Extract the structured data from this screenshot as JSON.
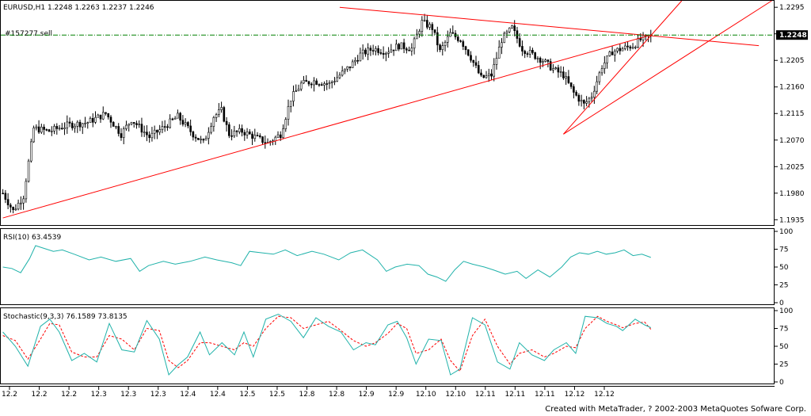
{
  "footer": "Created with MetaTrader, ? 2002-2003 MetaQuotes Sofware Corp.",
  "colors": {
    "background": "#ffffff",
    "frame": "#000000",
    "candle": "#000000",
    "trendline": "#ff0000",
    "order_line": "#008000",
    "rsi": "#20b2aa",
    "stoch_main": "#20b2aa",
    "stoch_signal": "#ff0000",
    "price_tag_bg": "#000000",
    "price_tag_fg": "#ffffff"
  },
  "chart_data": [
    {
      "type": "candlestick",
      "symbol_header": "EURUSD,H1  1.2248 1.2263 1.2237 1.2246",
      "ohlc_last": {
        "open": 1.2248,
        "high": 1.2263,
        "low": 1.2237,
        "close": 1.2246
      },
      "order_label": "#157277 sell",
      "order_price": 1.2248,
      "current_price_label": "1.2248",
      "y_ticks": [
        "1.2295",
        "1.2250",
        "1.2205",
        "1.2160",
        "1.2115",
        "1.2070",
        "1.2025",
        "1.1980",
        "1.1935"
      ],
      "ylim": [
        1.1926,
        1.2306
      ],
      "grid": false,
      "x_ticks": [
        "12.2",
        "12.2",
        "12.2",
        "12.3",
        "12.3",
        "12.3",
        "12.4",
        "12.4",
        "12.5",
        "12.5",
        "12.8",
        "12.8",
        "12.9",
        "12.9",
        "12.10",
        "12.10",
        "12.11",
        "12.11",
        "12.11",
        "12.12",
        "12.12"
      ],
      "close_path": [
        [
          0,
          1.198
        ],
        [
          4,
          1.195
        ],
        [
          8,
          1.1975
        ],
        [
          12,
          1.209
        ],
        [
          18,
          1.2085
        ],
        [
          25,
          1.2095
        ],
        [
          33,
          1.21
        ],
        [
          40,
          1.2115
        ],
        [
          46,
          1.208
        ],
        [
          50,
          1.2105
        ],
        [
          57,
          1.2075
        ],
        [
          62,
          1.209
        ],
        [
          68,
          1.211
        ],
        [
          74,
          1.208
        ],
        [
          78,
          1.2065
        ],
        [
          82,
          1.211
        ],
        [
          85,
          1.212
        ],
        [
          88,
          1.208
        ],
        [
          93,
          1.2085
        ],
        [
          98,
          1.2075
        ],
        [
          103,
          1.2065
        ],
        [
          108,
          1.208
        ],
        [
          112,
          1.214
        ],
        [
          116,
          1.2165
        ],
        [
          121,
          1.217
        ],
        [
          127,
          1.2165
        ],
        [
          131,
          1.218
        ],
        [
          135,
          1.2195
        ],
        [
          139,
          1.2215
        ],
        [
          144,
          1.2225
        ],
        [
          149,
          1.222
        ],
        [
          154,
          1.223
        ],
        [
          159,
          1.2225
        ],
        [
          163,
          1.227
        ],
        [
          167,
          1.226
        ],
        [
          170,
          1.222
        ],
        [
          174,
          1.225
        ],
        [
          178,
          1.224
        ],
        [
          182,
          1.221
        ],
        [
          186,
          1.2175
        ],
        [
          190,
          1.218
        ],
        [
          194,
          1.224
        ],
        [
          198,
          1.226
        ],
        [
          202,
          1.2225
        ],
        [
          206,
          1.2215
        ],
        [
          210,
          1.2205
        ],
        [
          214,
          1.219
        ],
        [
          218,
          1.218
        ],
        [
          222,
          1.215
        ],
        [
          226,
          1.213
        ],
        [
          229,
          1.2145
        ],
        [
          233,
          1.2195
        ],
        [
          237,
          1.222
        ],
        [
          241,
          1.2225
        ],
        [
          245,
          1.223
        ],
        [
          248,
          1.224
        ],
        [
          252,
          1.2246
        ]
      ],
      "trendlines": [
        {
          "from": [
            0,
            1.1938
          ],
          "to": [
            252,
            1.2248
          ]
        },
        {
          "from": [
            131,
            1.2295
          ],
          "to": [
            294,
            1.223
          ]
        },
        {
          "from": [
            218,
            1.208
          ],
          "to": [
            264,
            1.2306
          ]
        },
        {
          "from": [
            218,
            1.208
          ],
          "to": [
            299,
            1.2306
          ]
        }
      ]
    },
    {
      "type": "line",
      "label": "RSI(10)  63.4539",
      "y_ticks": [
        "100",
        "75",
        "50",
        "25",
        "0"
      ],
      "ylim": [
        0,
        100
      ],
      "values": [
        [
          0,
          50
        ],
        [
          3,
          48
        ],
        [
          6,
          42
        ],
        [
          9,
          62
        ],
        [
          11,
          80
        ],
        [
          14,
          76
        ],
        [
          17,
          72
        ],
        [
          20,
          74
        ],
        [
          24,
          68
        ],
        [
          29,
          60
        ],
        [
          33,
          64
        ],
        [
          38,
          58
        ],
        [
          43,
          62
        ],
        [
          46,
          44
        ],
        [
          49,
          52
        ],
        [
          54,
          58
        ],
        [
          58,
          54
        ],
        [
          63,
          58
        ],
        [
          68,
          64
        ],
        [
          72,
          60
        ],
        [
          77,
          56
        ],
        [
          80,
          52
        ],
        [
          83,
          72
        ],
        [
          87,
          70
        ],
        [
          91,
          68
        ],
        [
          95,
          74
        ],
        [
          99,
          66
        ],
        [
          104,
          72
        ],
        [
          108,
          68
        ],
        [
          113,
          60
        ],
        [
          117,
          70
        ],
        [
          121,
          74
        ],
        [
          126,
          60
        ],
        [
          129,
          44
        ],
        [
          132,
          50
        ],
        [
          136,
          54
        ],
        [
          140,
          52
        ],
        [
          143,
          40
        ],
        [
          146,
          36
        ],
        [
          149,
          30
        ],
        [
          152,
          46
        ],
        [
          155,
          58
        ],
        [
          158,
          54
        ],
        [
          162,
          50
        ],
        [
          165,
          46
        ],
        [
          169,
          40
        ],
        [
          173,
          44
        ],
        [
          176,
          34
        ],
        [
          180,
          46
        ],
        [
          184,
          36
        ],
        [
          188,
          50
        ],
        [
          191,
          64
        ],
        [
          194,
          70
        ],
        [
          197,
          68
        ],
        [
          200,
          72
        ],
        [
          203,
          68
        ],
        [
          206,
          70
        ],
        [
          209,
          74
        ],
        [
          212,
          66
        ],
        [
          215,
          68
        ],
        [
          218,
          63.45
        ]
      ]
    },
    {
      "type": "line",
      "label": "Stochastic(9,3,3)  76.1589  73.8135",
      "y_ticks": [
        "100",
        "75",
        "50",
        "25",
        "0"
      ],
      "ylim": [
        0,
        100
      ],
      "series": [
        {
          "values": [
            [
              0,
              70
            ],
            [
              4,
              50
            ],
            [
              8,
              22
            ],
            [
              12,
              78
            ],
            [
              15,
              88
            ],
            [
              18,
              70
            ],
            [
              22,
              30
            ],
            [
              26,
              40
            ],
            [
              30,
              28
            ],
            [
              34,
              82
            ],
            [
              38,
              45
            ],
            [
              42,
              42
            ],
            [
              46,
              86
            ],
            [
              50,
              60
            ],
            [
              53,
              10
            ],
            [
              56,
              24
            ],
            [
              59,
              35
            ],
            [
              63,
              70
            ],
            [
              66,
              38
            ],
            [
              70,
              55
            ],
            [
              74,
              38
            ],
            [
              77,
              70
            ],
            [
              80,
              35
            ],
            [
              84,
              88
            ],
            [
              88,
              95
            ],
            [
              92,
              85
            ],
            [
              96,
              62
            ],
            [
              100,
              90
            ],
            [
              104,
              78
            ],
            [
              108,
              70
            ],
            [
              112,
              45
            ],
            [
              116,
              55
            ],
            [
              119,
              52
            ],
            [
              123,
              80
            ],
            [
              126,
              85
            ],
            [
              129,
              62
            ],
            [
              132,
              25
            ],
            [
              136,
              60
            ],
            [
              140,
              58
            ],
            [
              143,
              10
            ],
            [
              146,
              18
            ],
            [
              150,
              90
            ],
            [
              154,
              80
            ],
            [
              158,
              28
            ],
            [
              162,
              18
            ],
            [
              165,
              55
            ],
            [
              169,
              38
            ],
            [
              173,
              30
            ],
            [
              176,
              45
            ],
            [
              180,
              55
            ],
            [
              183,
              40
            ],
            [
              186,
              92
            ],
            [
              190,
              90
            ],
            [
              193,
              82
            ],
            [
              196,
              78
            ],
            [
              198,
              72
            ],
            [
              202,
              88
            ],
            [
              205,
              80
            ],
            [
              207,
              76.16
            ]
          ]
        },
        {
          "values": [
            [
              0,
              65
            ],
            [
              4,
              58
            ],
            [
              8,
              32
            ],
            [
              12,
              60
            ],
            [
              15,
              82
            ],
            [
              18,
              80
            ],
            [
              22,
              42
            ],
            [
              26,
              35
            ],
            [
              30,
              35
            ],
            [
              34,
              65
            ],
            [
              38,
              60
            ],
            [
              42,
              45
            ],
            [
              46,
              75
            ],
            [
              50,
              72
            ],
            [
              53,
              30
            ],
            [
              56,
              20
            ],
            [
              59,
              30
            ],
            [
              63,
              55
            ],
            [
              66,
              55
            ],
            [
              70,
              50
            ],
            [
              74,
              45
            ],
            [
              77,
              55
            ],
            [
              80,
              50
            ],
            [
              84,
              75
            ],
            [
              88,
              92
            ],
            [
              92,
              90
            ],
            [
              96,
              75
            ],
            [
              100,
              80
            ],
            [
              104,
              85
            ],
            [
              108,
              72
            ],
            [
              112,
              58
            ],
            [
              116,
              50
            ],
            [
              119,
              55
            ],
            [
              123,
              68
            ],
            [
              126,
              82
            ],
            [
              129,
              75
            ],
            [
              132,
              40
            ],
            [
              136,
              45
            ],
            [
              140,
              60
            ],
            [
              143,
              30
            ],
            [
              146,
              15
            ],
            [
              150,
              65
            ],
            [
              154,
              88
            ],
            [
              158,
              50
            ],
            [
              162,
              25
            ],
            [
              165,
              40
            ],
            [
              169,
              45
            ],
            [
              173,
              35
            ],
            [
              176,
              40
            ],
            [
              180,
              50
            ],
            [
              183,
              48
            ],
            [
              186,
              75
            ],
            [
              190,
              92
            ],
            [
              193,
              85
            ],
            [
              196,
              80
            ],
            [
              198,
              76
            ],
            [
              202,
              82
            ],
            [
              205,
              84
            ],
            [
              207,
              73.81
            ]
          ]
        }
      ]
    }
  ]
}
